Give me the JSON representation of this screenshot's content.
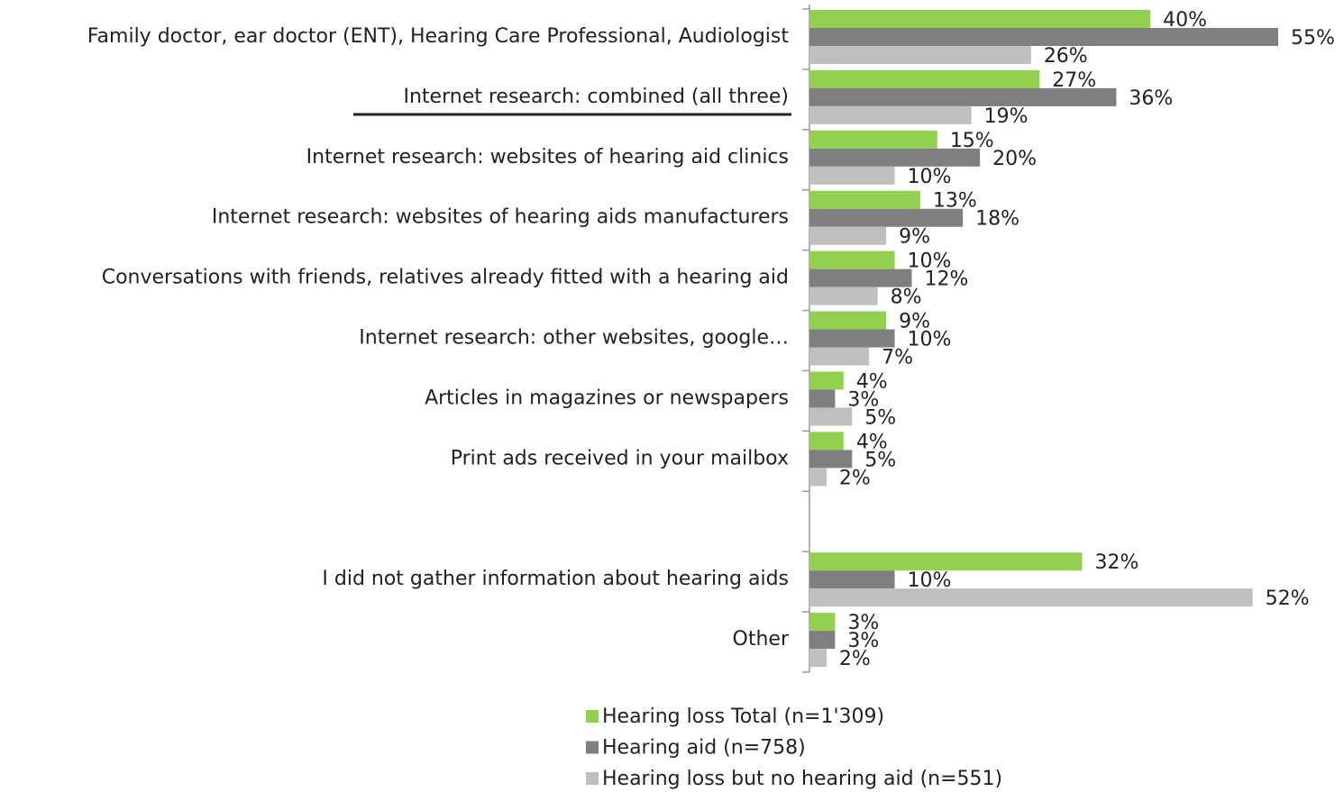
{
  "chart_data": {
    "type": "bar",
    "orientation": "horizontal",
    "categories": [
      "Family doctor, ear doctor (ENT), Hearing Care Professional, Audiologist",
      "Internet research: combined (all three)",
      "Internet research: websites of hearing aid clinics",
      "Internet research: websites of hearing aids manufacturers",
      "Conversations with friends, relatives already fitted with a hearing aid",
      "Internet research: other websites, google…",
      "Articles in magazines or newspapers",
      "Print ads received in your mailbox",
      null,
      "I did not gather information about hearing aids",
      "Other"
    ],
    "series": [
      {
        "name": "Hearing loss Total (n=1'309)",
        "color": "#92d050",
        "values": [
          40,
          27,
          15,
          13,
          10,
          9,
          4,
          4,
          null,
          32,
          3
        ],
        "value_labels": [
          "40%",
          "27%",
          "15%",
          "13%",
          "10%",
          "9%",
          "4%",
          "4%",
          null,
          "32%",
          "3%"
        ]
      },
      {
        "name": "Hearing aid (n=758)",
        "color": "#7f7f7f",
        "values": [
          55,
          36,
          20,
          18,
          12,
          10,
          3,
          5,
          null,
          10,
          3
        ],
        "value_labels": [
          "55%",
          "36%",
          "20%",
          "18%",
          "12%",
          "10%",
          "3%",
          "5%",
          null,
          "10%",
          "3%"
        ]
      },
      {
        "name": "Hearing loss but no hearing aid (n=551)",
        "color": "#bfbfbf",
        "values": [
          26,
          19,
          10,
          9,
          8,
          7,
          5,
          2,
          null,
          52,
          2
        ],
        "value_labels": [
          "26%",
          "19%",
          "10%",
          "9%",
          "8%",
          "7%",
          "5%",
          "2%",
          null,
          "52%",
          "2%"
        ]
      }
    ]
  }
}
